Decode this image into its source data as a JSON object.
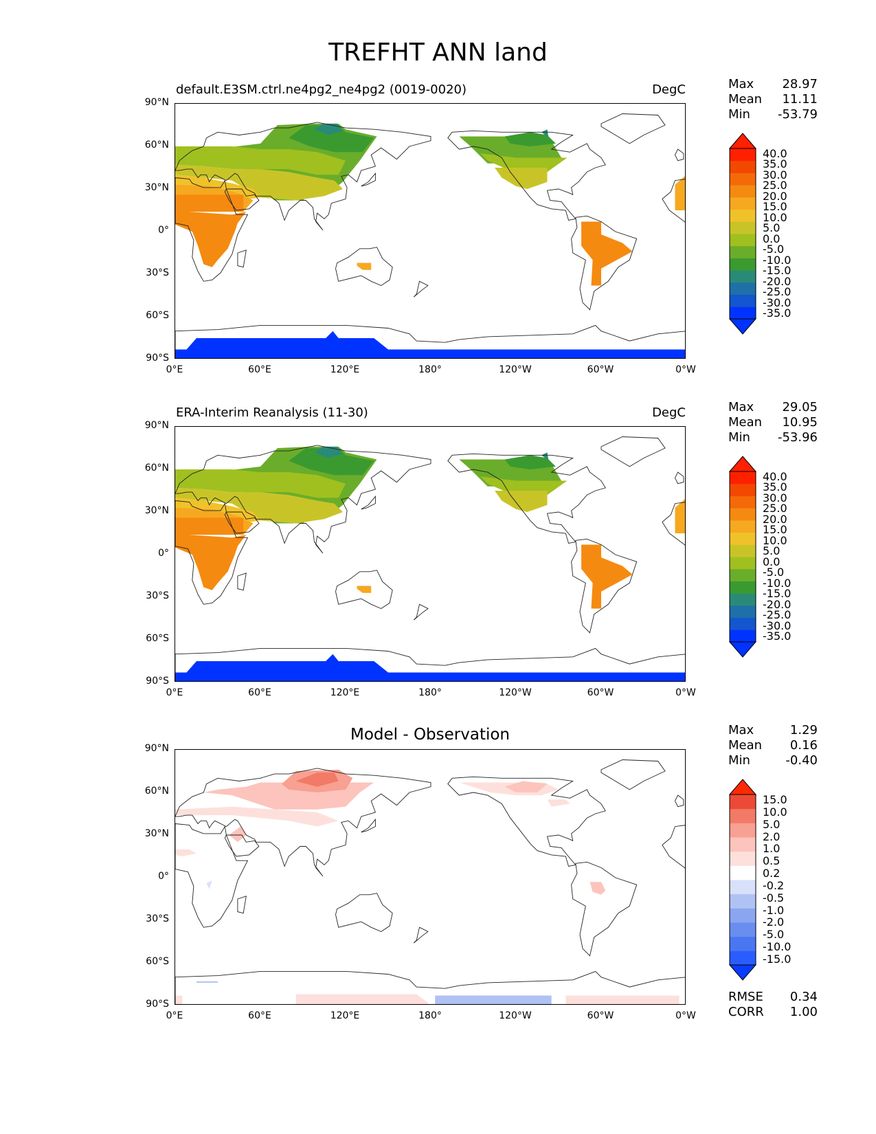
{
  "title": "TREFHT ANN land",
  "axes": {
    "lat_ticks": [
      "90°N",
      "60°N",
      "30°N",
      "0°",
      "30°S",
      "60°S",
      "90°S"
    ],
    "lon_ticks": [
      "0°E",
      "60°E",
      "120°E",
      "180°",
      "120°W",
      "60°W",
      "0°W"
    ]
  },
  "panels": [
    {
      "title_left": "default.E3SM.ctrl.ne4pg2_ne4pg2 (0019-0020)",
      "title_right": "DegC",
      "title_center": "",
      "stats": [
        {
          "label": "Max",
          "value": "28.97"
        },
        {
          "label": "Mean",
          "value": "11.11"
        },
        {
          "label": "Min",
          "value": "-53.79"
        }
      ],
      "colorbar_labels": [
        "40.0",
        "35.0",
        "30.0",
        "25.0",
        "20.0",
        "15.0",
        "10.0",
        "5.0",
        "0.0",
        "-5.0",
        "-10.0",
        "-15.0",
        "-20.0",
        "-25.0",
        "-30.0",
        "-35.0"
      ],
      "footer": []
    },
    {
      "title_left": "ERA-Interim Reanalysis (11-30)",
      "title_right": "DegC",
      "title_center": "",
      "stats": [
        {
          "label": "Max",
          "value": "29.05"
        },
        {
          "label": "Mean",
          "value": "10.95"
        },
        {
          "label": "Min",
          "value": "-53.96"
        }
      ],
      "colorbar_labels": [
        "40.0",
        "35.0",
        "30.0",
        "25.0",
        "20.0",
        "15.0",
        "10.0",
        "5.0",
        "0.0",
        "-5.0",
        "-10.0",
        "-15.0",
        "-20.0",
        "-25.0",
        "-30.0",
        "-35.0"
      ],
      "footer": []
    },
    {
      "title_left": "",
      "title_right": "",
      "title_center": "Model - Observation",
      "stats": [
        {
          "label": "Max",
          "value": "1.29"
        },
        {
          "label": "Mean",
          "value": "0.16"
        },
        {
          "label": "Min",
          "value": "-0.40"
        }
      ],
      "colorbar_labels": [
        "15.0",
        "10.0",
        "5.0",
        "2.0",
        "1.0",
        "0.5",
        "0.2",
        "-0.2",
        "-0.5",
        "-1.0",
        "-2.0",
        "-5.0",
        "-10.0",
        "-15.0"
      ],
      "footer": [
        {
          "label": "RMSE",
          "value": "0.34"
        },
        {
          "label": "CORR",
          "value": "1.00"
        }
      ]
    }
  ],
  "colors": {
    "temp_scale": [
      "#0033ff",
      "#1455d0",
      "#1f6fa8",
      "#2a8a78",
      "#3a9a30",
      "#6aad2a",
      "#a0c020",
      "#c8c428",
      "#f0c22a",
      "#f6a820",
      "#f58a10",
      "#f56a08",
      "#f24800",
      "#ff2000"
    ],
    "diff_scale": [
      "#0a3cff",
      "#2a5cff",
      "#4a76f2",
      "#6a8ef0",
      "#8aa6f0",
      "#b0c2f4",
      "#d8e0fa",
      "#ffffff",
      "#fde0dc",
      "#fcc4bc",
      "#f8a092",
      "#f27a66",
      "#ec4a36",
      "#ff2a00"
    ],
    "antarctic_blue": "#0033ff"
  },
  "chart_data": [
    {
      "type": "heatmap",
      "title": "default.E3SM.ctrl.ne4pg2_ne4pg2 (0019-0020)",
      "units": "DegC",
      "x_range": [
        0,
        360
      ],
      "y_range": [
        -90,
        90
      ],
      "levels": [
        -35,
        -30,
        -25,
        -20,
        -15,
        -10,
        -5,
        0,
        5,
        10,
        15,
        20,
        25,
        30,
        35,
        40
      ],
      "stats": {
        "max": 28.97,
        "mean": 11.11,
        "min": -53.79
      }
    },
    {
      "type": "heatmap",
      "title": "ERA-Interim Reanalysis (11-30)",
      "units": "DegC",
      "x_range": [
        0,
        360
      ],
      "y_range": [
        -90,
        90
      ],
      "levels": [
        -35,
        -30,
        -25,
        -20,
        -15,
        -10,
        -5,
        0,
        5,
        10,
        15,
        20,
        25,
        30,
        35,
        40
      ],
      "stats": {
        "max": 29.05,
        "mean": 10.95,
        "min": -53.96
      }
    },
    {
      "type": "heatmap",
      "title": "Model - Observation",
      "x_range": [
        0,
        360
      ],
      "y_range": [
        -90,
        90
      ],
      "levels": [
        -15,
        -10,
        -5,
        -2,
        -1,
        -0.5,
        -0.2,
        0.2,
        0.5,
        1,
        2,
        5,
        10,
        15
      ],
      "stats": {
        "max": 1.29,
        "mean": 0.16,
        "min": -0.4,
        "rmse": 0.34,
        "corr": 1.0
      }
    }
  ]
}
